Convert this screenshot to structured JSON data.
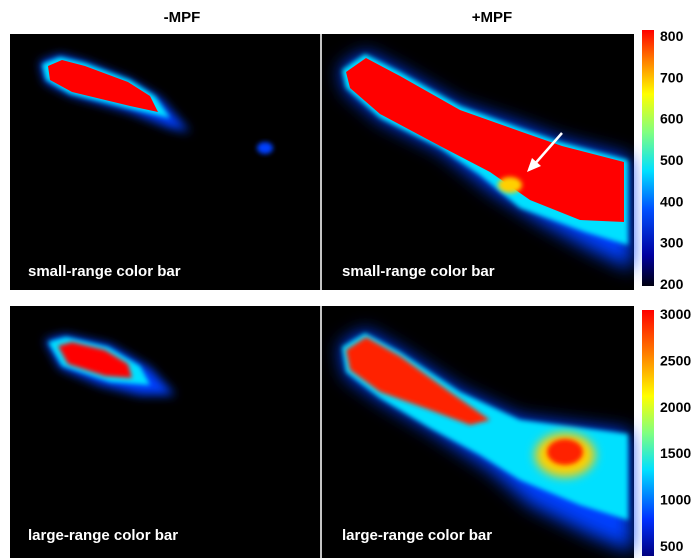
{
  "headers": [
    "-MPF",
    "+MPF"
  ],
  "panels": [
    {
      "label": "small-range color bar"
    },
    {
      "label": "small-range color bar"
    },
    {
      "label": "large-range color bar"
    },
    {
      "label": "large-range color bar"
    }
  ],
  "colorbars": [
    {
      "ticks": [
        800,
        700,
        600,
        500,
        400,
        300,
        200
      ]
    },
    {
      "ticks": [
        3000,
        2500,
        2000,
        1500,
        1000,
        500
      ]
    }
  ]
}
